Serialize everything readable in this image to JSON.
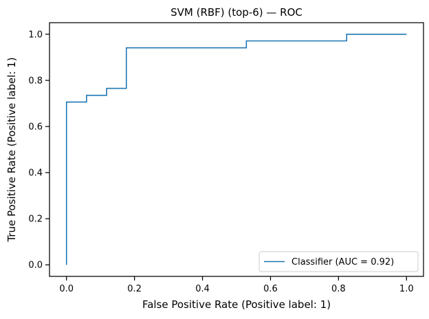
{
  "chart_data": {
    "type": "line",
    "title": "SVM (RBF) (top-6) — ROC",
    "xlabel": "False Positive Rate (Positive label: 1)",
    "ylabel": "True Positive Rate (Positive label: 1)",
    "xlim": [
      -0.05,
      1.05
    ],
    "ylim": [
      -0.05,
      1.05
    ],
    "xticks": [
      0.0,
      0.2,
      0.4,
      0.6,
      0.8,
      1.0
    ],
    "yticks": [
      0.0,
      0.2,
      0.4,
      0.6,
      0.8,
      1.0
    ],
    "xtick_labels": [
      "0.0",
      "0.2",
      "0.4",
      "0.6",
      "0.8",
      "1.0"
    ],
    "ytick_labels": [
      "0.0",
      "0.2",
      "0.4",
      "0.6",
      "0.8",
      "1.0"
    ],
    "grid": false,
    "legend_position": "lower-right",
    "series": [
      {
        "name": "Classifier (AUC = 0.92)",
        "color": "#1f77b4",
        "x": [
          0.0,
          0.0,
          0.059,
          0.059,
          0.118,
          0.118,
          0.176,
          0.176,
          0.529,
          0.529,
          0.824,
          0.824,
          1.0
        ],
        "y": [
          0.0,
          0.706,
          0.706,
          0.735,
          0.735,
          0.765,
          0.765,
          0.941,
          0.941,
          0.971,
          0.971,
          1.0,
          1.0
        ]
      }
    ]
  }
}
